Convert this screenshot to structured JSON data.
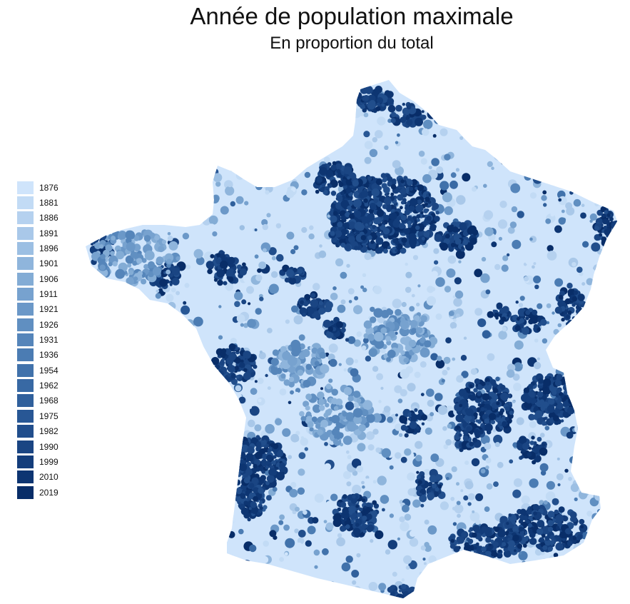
{
  "title": "Année de population maximale",
  "subtitle": "En proportion du total",
  "legend": [
    {
      "label": "1876",
      "color": "#cfe4fb"
    },
    {
      "label": "1881",
      "color": "#c2dbf5"
    },
    {
      "label": "1886",
      "color": "#b5d1ef"
    },
    {
      "label": "1891",
      "color": "#a9c8e9"
    },
    {
      "label": "1896",
      "color": "#9cbfe3"
    },
    {
      "label": "1901",
      "color": "#8fb5dc"
    },
    {
      "label": "1906",
      "color": "#83acd5"
    },
    {
      "label": "1911",
      "color": "#77a2cf"
    },
    {
      "label": "1921",
      "color": "#6b98c8"
    },
    {
      "label": "1926",
      "color": "#608fc1"
    },
    {
      "label": "1931",
      "color": "#5585ba"
    },
    {
      "label": "1936",
      "color": "#4b7cb3"
    },
    {
      "label": "1954",
      "color": "#4172ab"
    },
    {
      "label": "1962",
      "color": "#3869a4"
    },
    {
      "label": "1968",
      "color": "#30609c"
    },
    {
      "label": "1975",
      "color": "#285795"
    },
    {
      "label": "1982",
      "color": "#214e8c"
    },
    {
      "label": "1990",
      "color": "#1a4583"
    },
    {
      "label": "1999",
      "color": "#133d7b"
    },
    {
      "label": "2010",
      "color": "#0d3572"
    },
    {
      "label": "2019",
      "color": "#082d68"
    }
  ],
  "map": {
    "base_color": "#cfe4fb",
    "dark_color": "#08306b",
    "mid_color": "#6b98c8"
  }
}
